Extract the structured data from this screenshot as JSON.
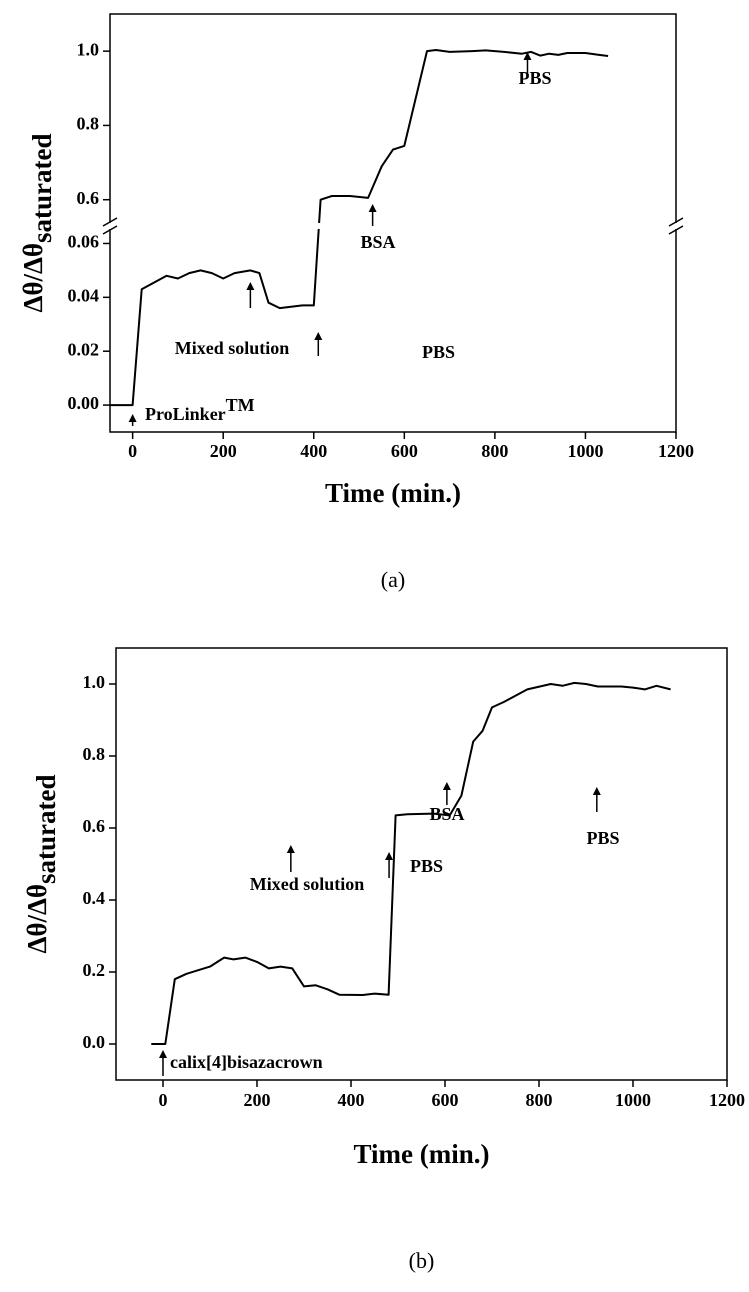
{
  "chart_data": [
    {
      "type": "line",
      "caption": "(a)",
      "xlabel": "Time (min.)",
      "ylabel": "Δθ/Δθ",
      "ylabel_sub": "saturated",
      "color": "#000000",
      "xlim": [
        -50,
        1200
      ],
      "xticks": [
        0,
        200,
        400,
        600,
        800,
        1000,
        1200
      ],
      "y_segments": [
        {
          "ylim": [
            -0.01,
            0.065
          ],
          "yticks": [
            {
              "value": 0,
              "label": "0.00"
            },
            0.02,
            0.04,
            0.06
          ]
        },
        {
          "ylim": [
            0.54,
            1.1
          ],
          "yticks": [
            0.6,
            0.8,
            {
              "value": 1,
              "label": "1.0"
            }
          ]
        }
      ],
      "x": [
        -50,
        0,
        20,
        75,
        100,
        125,
        150,
        175,
        200,
        225,
        260,
        280,
        300,
        325,
        375,
        400,
        415,
        440,
        480,
        520,
        550,
        575,
        600,
        650,
        670,
        700,
        750,
        780,
        820,
        860,
        880,
        900,
        920,
        940,
        960,
        1000,
        1030,
        1050
      ],
      "values": [
        0,
        0,
        0.043,
        0.048,
        0.047,
        0.049,
        0.05,
        0.049,
        0.047,
        0.049,
        0.05,
        0.049,
        0.038,
        0.036,
        0.037,
        0.037,
        0.6,
        0.61,
        0.61,
        0.605,
        0.69,
        0.735,
        0.745,
        1.0,
        1.003,
        0.998,
        1.0,
        1.002,
        0.998,
        0.993,
        0.998,
        0.988,
        0.993,
        0.99,
        0.995,
        0.995,
        0.99,
        0.987
      ],
      "annotations": [
        {
          "text": "ProLinker",
          "sup": "TM"
        },
        {
          "text": "Mixed solution"
        },
        {
          "text": "PBS"
        },
        {
          "text": "BSA"
        },
        {
          "text": "PBS"
        }
      ]
    },
    {
      "type": "line",
      "caption": "(b)",
      "xlabel": "Time (min.)",
      "ylabel": "Δθ/Δθ",
      "ylabel_sub": "saturated",
      "color": "#000000",
      "xlim": [
        -100,
        1200
      ],
      "xticks": [
        0,
        200,
        400,
        600,
        800,
        1000,
        1200
      ],
      "y_segments": [
        {
          "ylim": [
            -0.1,
            1.1
          ],
          "yticks": [
            {
              "value": 0,
              "label": "0.0"
            },
            0.2,
            0.4,
            0.6,
            0.8,
            {
              "value": 1,
              "label": "1.0"
            }
          ]
        }
      ],
      "x": [
        -25,
        5,
        25,
        50,
        100,
        130,
        150,
        175,
        200,
        225,
        250,
        275,
        300,
        325,
        350,
        375,
        425,
        450,
        480,
        495,
        520,
        575,
        610,
        635,
        660,
        680,
        700,
        725,
        775,
        825,
        850,
        875,
        900,
        925,
        975,
        1000,
        1025,
        1050,
        1080
      ],
      "values": [
        0,
        0,
        0.18,
        0.195,
        0.215,
        0.24,
        0.235,
        0.24,
        0.228,
        0.21,
        0.215,
        0.21,
        0.16,
        0.163,
        0.152,
        0.137,
        0.136,
        0.14,
        0.137,
        0.635,
        0.638,
        0.64,
        0.635,
        0.69,
        0.84,
        0.87,
        0.935,
        0.95,
        0.985,
        1.0,
        0.995,
        1.003,
        1.0,
        0.993,
        0.993,
        0.99,
        0.985,
        0.995,
        0.985
      ],
      "annotations": [
        {
          "text": "calix[4]bisazacrown"
        },
        {
          "text": "Mixed solution"
        },
        {
          "text": "PBS"
        },
        {
          "text": "BSA"
        },
        {
          "text": "PBS"
        }
      ]
    }
  ]
}
